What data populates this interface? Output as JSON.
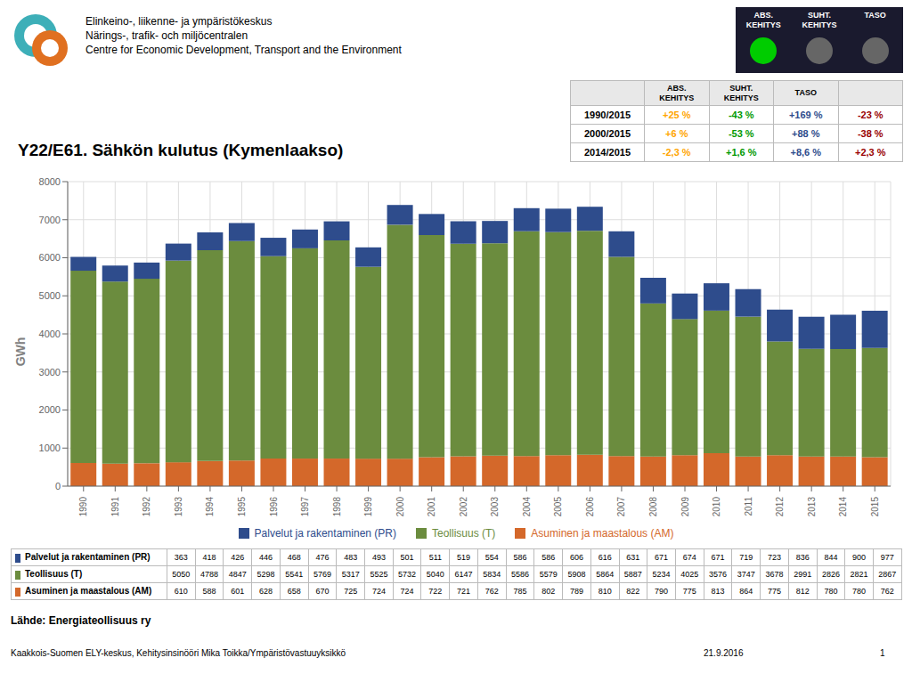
{
  "chart_data": {
    "type": "bar",
    "title": "Y22/E61. Sähkön kulutus (Kymenlaakso)",
    "y_label": "GWh",
    "stacked": true,
    "grid": true,
    "legend": "bottom",
    "categories": [
      1990,
      1991,
      1992,
      1993,
      1994,
      1995,
      1996,
      1997,
      1998,
      1999,
      2000,
      2001,
      2002,
      2003,
      2004,
      2005,
      2006,
      2007,
      2008,
      2009,
      2010,
      2011,
      2012,
      2013,
      2014,
      2015
    ],
    "series": [
      {
        "name": "Asuminen ja maastalous (AM)",
        "color": "#D4682A",
        "values": [
          610,
          588,
          601,
          628,
          658,
          670,
          725,
          724,
          724,
          722,
          721,
          762,
          785,
          802,
          789,
          810,
          822,
          790,
          775,
          813,
          864,
          775,
          812,
          780,
          780,
          762
        ]
      },
      {
        "name": "Teollisuus (T)",
        "color": "#6B8C3E",
        "values": [
          5050,
          4788,
          4847,
          5298,
          5541,
          5769,
          5317,
          5525,
          5732,
          5040,
          6147,
          5834,
          5586,
          5579,
          5908,
          5864,
          5887,
          5234,
          4025,
          3576,
          3747,
          3678,
          2991,
          2826,
          2821,
          2867
        ]
      },
      {
        "name": "Palvelut ja rakentaminen (PR)",
        "color": "#2E4C8C",
        "values": [
          363,
          418,
          426,
          446,
          468,
          476,
          483,
          493,
          501,
          511,
          519,
          554,
          586,
          586,
          606,
          616,
          631,
          671,
          674,
          671,
          719,
          723,
          836,
          844,
          900,
          977
        ]
      }
    ],
    "ylim": [
      0,
      8000
    ],
    "yticks": [
      0,
      1000,
      2000,
      3000,
      4000,
      5000,
      6000,
      7000,
      8000
    ],
    "stats_table": {
      "columns": [
        "ABS.\nKEHITYS",
        "SUHT.\nKEHITYS",
        "TASO",
        null
      ],
      "colors": [
        "#FFA500",
        "#009900",
        "#2E4C8C",
        "#990000"
      ],
      "rows": [
        {
          "label": "1990/2015",
          "values": [
            "+25 %",
            "-43 %",
            "+169 %",
            "-23 %"
          ]
        },
        {
          "label": "2000/2015",
          "values": [
            "+6 %",
            "-53 %",
            "+88 %",
            "-38 %"
          ]
        },
        {
          "label": "2014/2015",
          "values": [
            "-2,3 %",
            "+1,6 %",
            "+8,6 %",
            "+2,3 %"
          ]
        }
      ]
    },
    "indicators": [
      {
        "label": "ABS.\nKEHITYS",
        "color": "#00CC00"
      },
      {
        "label": "SUHT.\nKEHITYS",
        "color": "#666666"
      },
      {
        "label": "TASO",
        "color": "#666666"
      }
    ],
    "annotations": {
      "org_lines": [
        "Elinkeino-, liikenne- ja ympäristökeskus",
        "Närings-, trafik- och miljöcentralen",
        "Centre for Economic Development, Transport and the Environment"
      ],
      "source": "Lähde: Energiateollisuus ry",
      "footer": [
        "Kaakkois-Suomen ELY-keskus, Kehitysinsinööri Mika Toikka/Ympäristövastuuyksikkö",
        "21.9.2016",
        "1"
      ]
    }
  }
}
